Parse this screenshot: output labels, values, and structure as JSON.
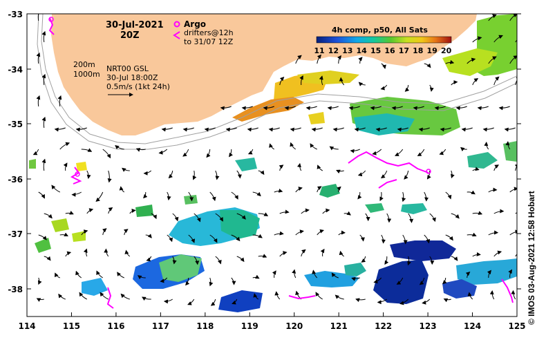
{
  "date_label": "30-Jul-2021",
  "time_label": "20Z",
  "legend": {
    "argo_label": "Argo",
    "drifter_line1": "drifters@12h",
    "drifter_line2": "to 31/07 12Z",
    "depth_200": "200m",
    "depth_1000": "1000m",
    "nrt_line1": "NRT00 GSL",
    "nrt_line2": "30-Jul 18:00Z",
    "scale_label": "0.5m/s (1kt 24h)"
  },
  "colorbar": {
    "title": "4h comp, p50, All Sats",
    "ticks": [
      "11",
      "12",
      "13",
      "14",
      "15",
      "16",
      "17",
      "18",
      "19",
      "20"
    ]
  },
  "axes": {
    "x_ticks": [
      "114",
      "115",
      "116",
      "117",
      "118",
      "119",
      "120",
      "121",
      "122",
      "123",
      "124",
      "125"
    ],
    "y_ticks": [
      "-33",
      "-34",
      "-35",
      "-36",
      "-37",
      "-38"
    ]
  },
  "credit": "© IMOS 03-Aug-2021 12:58 Hobart",
  "colors": {
    "land": "#f9c89b",
    "argo": "#ff00ff",
    "drifter": "#ff00ff",
    "isobath": "#a0a0a0"
  }
}
